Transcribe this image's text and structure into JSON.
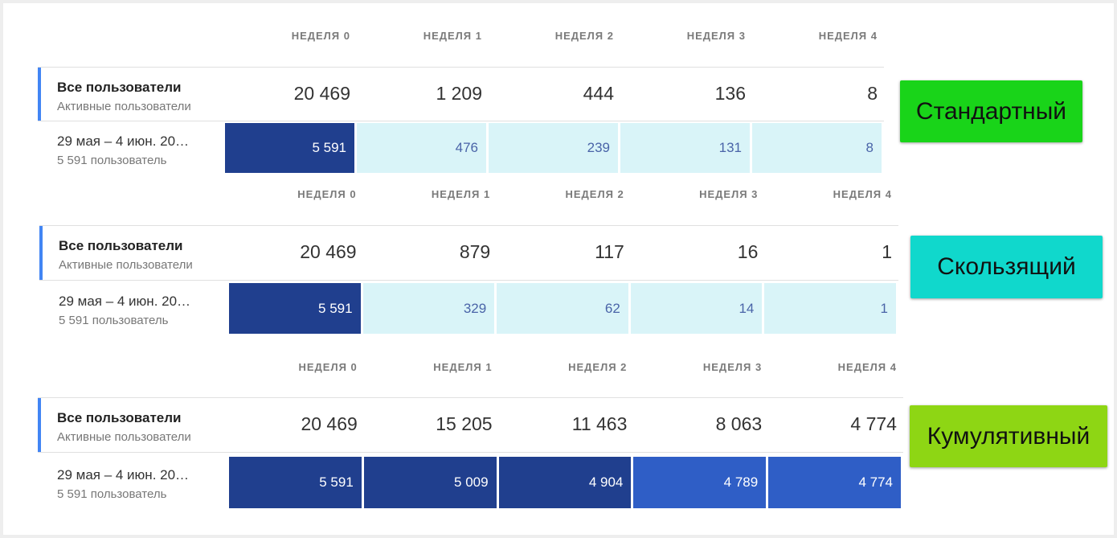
{
  "panels": [
    {
      "headers": [
        "НЕДЕЛЯ 0",
        "НЕДЕЛЯ 1",
        "НЕДЕЛЯ 2",
        "НЕДЕЛЯ 3",
        "НЕДЕЛЯ 4"
      ],
      "summary": {
        "title": "Все пользователи",
        "subtitle": "Активные пользователи",
        "values": [
          "20 469",
          "1 209",
          "444",
          "136",
          "8"
        ]
      },
      "cohort": {
        "title": "29 мая – 4 июн. 20…",
        "subtitle": "5 591 пользователь",
        "values": [
          "5 591",
          "476",
          "239",
          "131",
          "8"
        ],
        "colors": [
          "#203f8e",
          "#d9f4f8",
          "#d9f4f8",
          "#d9f4f8",
          "#d9f4f8"
        ]
      },
      "label": "Стандартный",
      "label_color": "#19d419"
    },
    {
      "headers": [
        "НЕДЕЛЯ 0",
        "НЕДЕЛЯ 1",
        "НЕДЕЛЯ 2",
        "НЕДЕЛЯ 3",
        "НЕДЕЛЯ 4"
      ],
      "summary": {
        "title": "Все пользователи",
        "subtitle": "Активные пользователи",
        "values": [
          "20 469",
          "879",
          "117",
          "16",
          "1"
        ]
      },
      "cohort": {
        "title": "29 мая – 4 июн. 20…",
        "subtitle": "5 591 пользователь",
        "values": [
          "5 591",
          "329",
          "62",
          "14",
          "1"
        ],
        "colors": [
          "#203f8e",
          "#d9f4f8",
          "#d9f4f8",
          "#d9f4f8",
          "#d9f4f8"
        ]
      },
      "label": "Скользящий",
      "label_color": "#10d8cc"
    },
    {
      "headers": [
        "НЕДЕЛЯ 0",
        "НЕДЕЛЯ 1",
        "НЕДЕЛЯ 2",
        "НЕДЕЛЯ 3",
        "НЕДЕЛЯ 4"
      ],
      "summary": {
        "title": "Все пользователи",
        "subtitle": "Активные пользователи",
        "values": [
          "20 469",
          "15 205",
          "11 463",
          "8 063",
          "4 774"
        ]
      },
      "cohort": {
        "title": "29 мая – 4 июн. 20…",
        "subtitle": "5 591 пользователь",
        "values": [
          "5 591",
          "5 009",
          "4 904",
          "4 789",
          "4 774"
        ],
        "colors": [
          "#203f8e",
          "#203f8e",
          "#203f8e",
          "#2f5ec6",
          "#2f5ec6"
        ]
      },
      "label": "Кумулятивный",
      "label_color": "#8ed614"
    }
  ]
}
